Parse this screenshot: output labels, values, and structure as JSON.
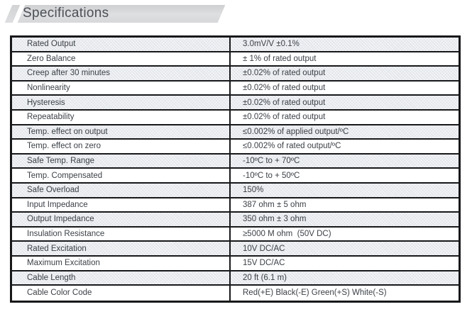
{
  "header": {
    "title": "Specifications"
  },
  "colors": {
    "border": "#17181a",
    "text": "#3c4147",
    "shaded_row": "#e9ebef",
    "header_banner": "#d6d7d9"
  },
  "table": {
    "rows": [
      {
        "label": "Rated Output",
        "value": "3.0mV/V ±0.1%"
      },
      {
        "label": "Zero Balance",
        "value": "± 1% of rated output"
      },
      {
        "label": "Creep after 30 minutes",
        "value": "±0.02% of rated output"
      },
      {
        "label": "Nonlinearity",
        "value": "±0.02% of rated output"
      },
      {
        "label": "Hysteresis",
        "value": "±0.02% of rated output"
      },
      {
        "label": "Repeatability",
        "value": "±0.02% of rated output"
      },
      {
        "label": "Temp. effect on output",
        "value": "≤0.002% of applied output/ºC"
      },
      {
        "label": "Temp. effect on zero",
        "value": "≤0.002% of rated output/ºC"
      },
      {
        "label": "Safe Temp. Range",
        "value": "-10ºC to + 70ºC"
      },
      {
        "label": "Temp. Compensated",
        "value": "-10ºC to + 50ºC"
      },
      {
        "label": "Safe Overload",
        "value": "150%"
      },
      {
        "label": "Input Impedance",
        "value": "387 ohm ± 5 ohm"
      },
      {
        "label": "Output Impedance",
        "value": "350 ohm ± 3 ohm"
      },
      {
        "label": "Insulation Resistance",
        "value": "≥5000 M ohm  (50V DC)"
      },
      {
        "label": "Rated Excitation",
        "value": "10V DC/AC"
      },
      {
        "label": "Maximum Excitation",
        "value": "15V DC/AC"
      },
      {
        "label": "Cable Length",
        "value": "20 ft (6.1 m)"
      },
      {
        "label": "Cable Color Code",
        "value": "Red(+E) Black(-E) Green(+S) White(-S)"
      }
    ]
  }
}
